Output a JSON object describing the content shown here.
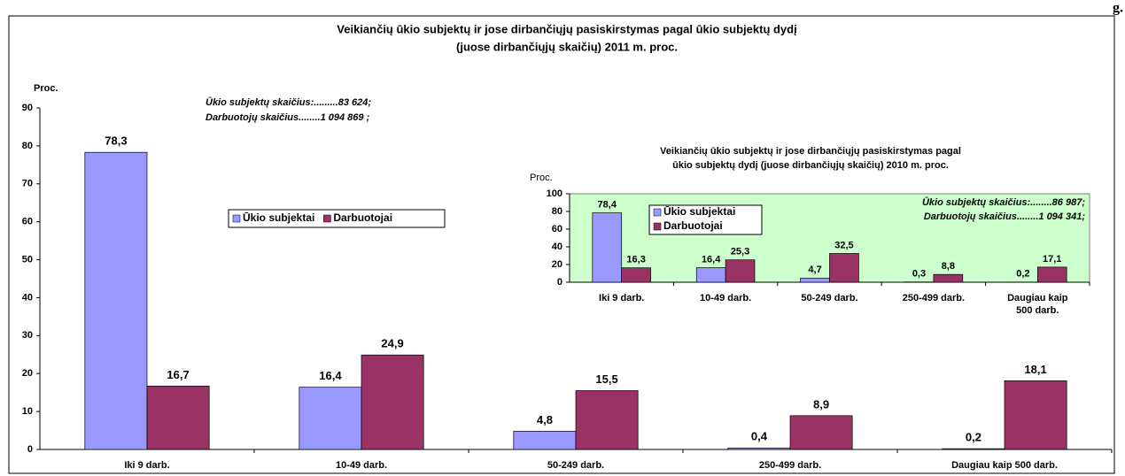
{
  "corner_text": "g.",
  "chart_data": [
    {
      "type": "bar",
      "title": [
        "Veikiančių ūkio subjektų ir jose dirbančiųjų pasiskirstymas pagal ūkio subjektų dydį",
        "(juose dirbančiųjų skaičių) 2011 m. proc."
      ],
      "y_label": "Proc.",
      "annotations": [
        "Ūkio subjektų skaičius:.........83 624;",
        "Darbuotojų skaičius........1 094 869 ;"
      ],
      "categories": [
        "Iki 9 darb.",
        "10-49 darb.",
        "50-249 darb.",
        "250-499 darb.",
        "Daugiau kaip 500 darb."
      ],
      "series": [
        {
          "name": "Ūkio subjektai",
          "color": "#9999ff",
          "values": [
            78.3,
            16.4,
            4.8,
            0.4,
            0.2
          ],
          "value_labels": [
            "78,3",
            "16,4",
            "4,8",
            "0,4",
            "0,2"
          ]
        },
        {
          "name": "Darbuotojai",
          "color": "#993366",
          "values": [
            16.7,
            24.9,
            15.5,
            8.9,
            18.1
          ],
          "value_labels": [
            "16,7",
            "24,9",
            "15,5",
            "8,9",
            "18,1"
          ]
        }
      ],
      "ylim": [
        0,
        90
      ],
      "yticks": [
        0,
        10,
        20,
        30,
        40,
        50,
        60,
        70,
        80,
        90
      ],
      "grid": false,
      "plot_background": "#ffffff"
    },
    {
      "type": "bar",
      "title": [
        "Veikiančių ūkio subjektų ir jose dirbančiųjų pasiskirstymas pagal",
        "ūkio subjektų dydį (juose dirbančiųjų skaičių) 2010 m. proc."
      ],
      "y_label": "Proc.",
      "annotations": [
        "Ūkio subjektų skaičius:........86 987;",
        "Darbuotojų skaičius........1 094 341;"
      ],
      "categories": [
        "Iki 9 darb.",
        "10-49 darb.",
        "50-249 darb.",
        "250-499 darb.",
        "Daugiau kaip 500 darb."
      ],
      "series": [
        {
          "name": "Ūkio subjektai",
          "color": "#9999ff",
          "values": [
            78.4,
            16.4,
            4.7,
            0.3,
            0.2
          ],
          "value_labels": [
            "78,4",
            "16,4",
            "4,7",
            "0,3",
            "0,2"
          ]
        },
        {
          "name": "Darbuotojai",
          "color": "#993366",
          "values": [
            16.3,
            25.3,
            32.5,
            8.8,
            17.1
          ],
          "value_labels": [
            "16,3",
            "25,3",
            "32,5",
            "8,8",
            "17,1"
          ]
        }
      ],
      "ylim": [
        0,
        100
      ],
      "yticks": [
        0,
        20,
        40,
        60,
        80,
        100
      ],
      "grid": false,
      "plot_background": "#ccffcc"
    }
  ]
}
